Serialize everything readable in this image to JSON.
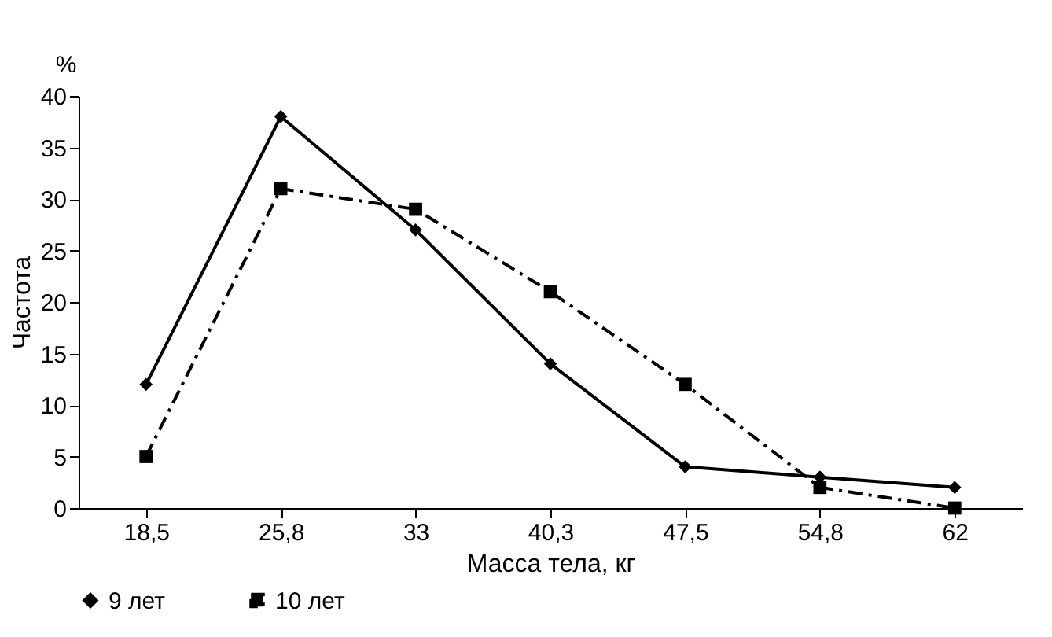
{
  "chart_data": {
    "type": "line",
    "xlabel": "Масса тела, кг",
    "ylabel": "Частота",
    "annotations": [
      "%"
    ],
    "categories": [
      "18,5",
      "25,8",
      "33",
      "40,3",
      "47,5",
      "54,8",
      "62"
    ],
    "series": [
      {
        "name": "9 лет",
        "color": "#000000",
        "marker": "diamond",
        "line_style": "solid",
        "values": [
          12,
          38,
          27,
          14,
          4,
          3,
          2
        ]
      },
      {
        "name": "10 лет",
        "color": "#000000",
        "marker": "square",
        "line_style": "dashed",
        "values": [
          5,
          31,
          29,
          21,
          12,
          2,
          0
        ]
      }
    ],
    "ylim": [
      0,
      40
    ],
    "yticks": [
      0,
      5,
      10,
      15,
      20,
      25,
      30,
      35,
      40
    ],
    "grid": false,
    "legend": "bottom"
  }
}
